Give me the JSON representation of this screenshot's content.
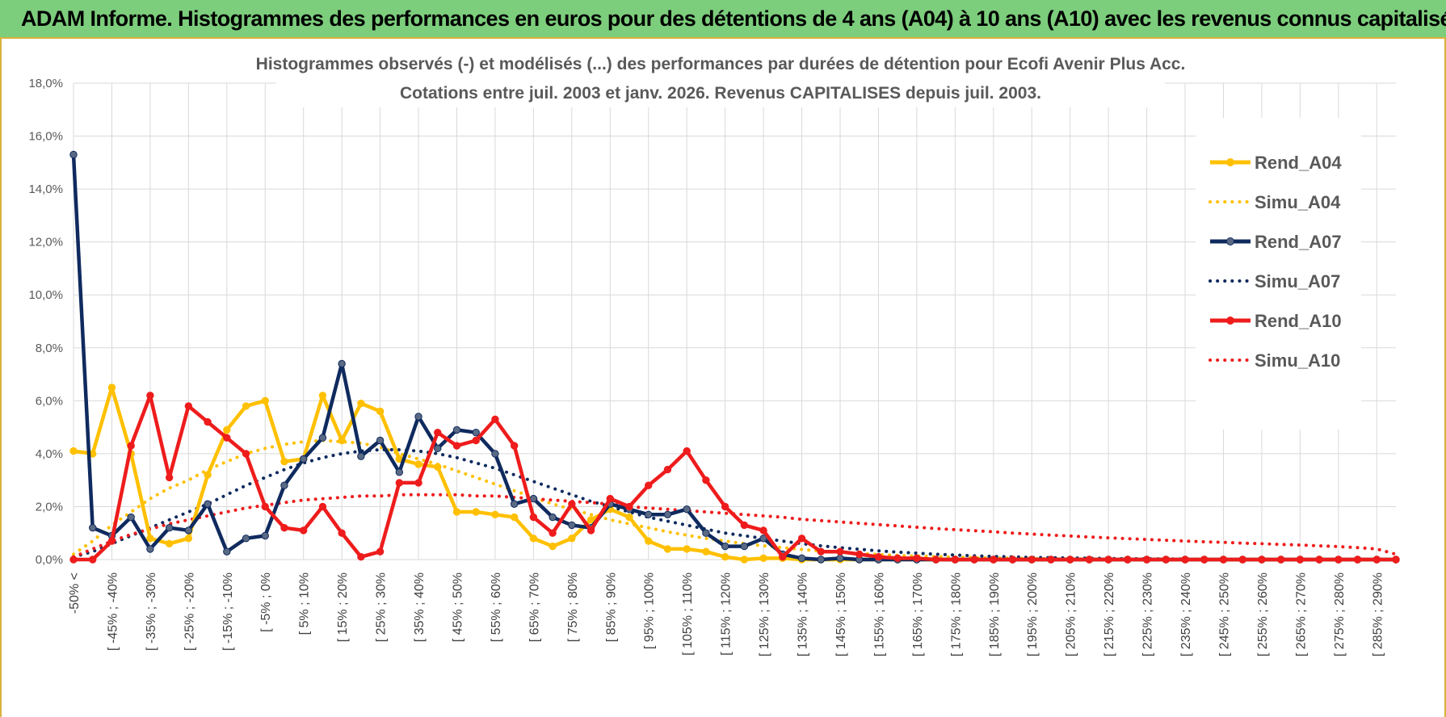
{
  "header": {
    "title": "ADAM Informe. Histogrammes des performances en euros pour des détentions de 4 ans (A04) à 10 ans (A10) avec les revenus connus capitalisés"
  },
  "chart_data": {
    "type": "line",
    "title": "Histogrammes observés (-) et modélisés (...) des performances par durées de détention pour Ecofi Avenir Plus Acc.",
    "subtitle": "Cotations entre juil. 2003 et janv. 2026. Revenus CAPITALISES depuis juil. 2003.",
    "ylim": [
      0,
      18
    ],
    "yticks": [
      "0,0%",
      "2,0%",
      "4,0%",
      "6,0%",
      "8,0%",
      "10,0%",
      "12,0%",
      "14,0%",
      "16,0%",
      "18,0%"
    ],
    "grid": true,
    "legend_position": "right",
    "tick_labels": [
      "-50% <",
      "[ -45% ; -40%",
      "[ -35% ; -30%",
      "[ -25% ; -20%",
      "[ -15% ; -10%",
      "[ -5% ; 0%",
      "[ 5% ; 10%",
      "[ 15% ; 20%",
      "[ 25% ; 30%",
      "[ 35% ; 40%",
      "[ 45% ; 50%",
      "[ 55% ; 60%",
      "[ 65% ; 70%",
      "[ 75% ; 80%",
      "[ 85% ; 90%",
      "[ 95% ; 100%",
      "[ 105% ; 110%",
      "[ 115% ; 120%",
      "[ 125% ; 130%",
      "[ 135% ; 140%",
      "[ 145% ; 150%",
      "[ 155% ; 160%",
      "[ 165% ; 170%",
      "[ 175% ; 180%",
      "[ 185% ; 190%",
      "[ 195% ; 200%",
      "[ 205% ; 210%",
      "[ 215% ; 220%",
      "[ 225% ; 230%",
      "[ 235% ; 240%",
      "[ 245% ; 250%",
      "[ 255% ; 260%",
      "[ 265% ; 270%",
      "[ 275% ; 280%",
      "[ 285% ; 290%"
    ],
    "series": [
      {
        "name": "Rend_A04",
        "color": "#ffc000",
        "style": "solid",
        "markers": true,
        "values": [
          4.1,
          4.0,
          6.5,
          4.0,
          0.8,
          0.6,
          0.8,
          3.2,
          4.9,
          5.8,
          6.0,
          3.7,
          3.8,
          6.2,
          4.5,
          5.9,
          5.6,
          3.8,
          3.6,
          3.5,
          1.8,
          1.8,
          1.7,
          1.6,
          0.8,
          0.5,
          0.8,
          1.5,
          1.9,
          1.6,
          0.7,
          0.4,
          0.4,
          0.3,
          0.1,
          0.0,
          0.05,
          0.05,
          0.0,
          0.0,
          0.0,
          0.0,
          0.0,
          0.0,
          0.0,
          0.0,
          0.0,
          0.0,
          0.0,
          0.0,
          0.0,
          0.0,
          0.0,
          0.0,
          0.0,
          0.0,
          0.0,
          0.0,
          0.0,
          0.0,
          0.0,
          0.0,
          0.0,
          0.0,
          0.0,
          0.0,
          0.0,
          0.0,
          0.0,
          0.0
        ]
      },
      {
        "name": "Simu_A04",
        "color": "#ffc000",
        "style": "dotted",
        "markers": false,
        "values": [
          0.2,
          0.7,
          1.3,
          1.8,
          2.3,
          2.7,
          3.0,
          3.4,
          3.7,
          4.0,
          4.2,
          4.35,
          4.45,
          4.5,
          4.45,
          4.4,
          4.25,
          4.0,
          3.8,
          3.6,
          3.35,
          3.1,
          2.85,
          2.6,
          2.35,
          2.1,
          1.9,
          1.7,
          1.5,
          1.35,
          1.2,
          1.05,
          0.92,
          0.8,
          0.7,
          0.6,
          0.52,
          0.45,
          0.38,
          0.32,
          0.27,
          0.23,
          0.19,
          0.16,
          0.13,
          0.11,
          0.09,
          0.07,
          0.06,
          0.05,
          0.04,
          0.03,
          0.02,
          0.02,
          0.01,
          0.01,
          0.01,
          0.01,
          0.0,
          0.0,
          0.0,
          0.0,
          0.0,
          0.0,
          0.0,
          0.0,
          0.0,
          0.0,
          0.0,
          0.0
        ]
      },
      {
        "name": "Rend_A07",
        "color": "#0f2a5e",
        "style": "solid",
        "markers": true,
        "values": [
          15.3,
          1.2,
          0.9,
          1.6,
          0.4,
          1.2,
          1.1,
          2.1,
          0.3,
          0.8,
          0.9,
          2.8,
          3.8,
          4.6,
          7.4,
          3.9,
          4.5,
          3.3,
          5.4,
          4.2,
          4.9,
          4.8,
          4.0,
          2.1,
          2.3,
          1.6,
          1.3,
          1.2,
          2.1,
          1.9,
          1.7,
          1.7,
          1.9,
          1.0,
          0.5,
          0.5,
          0.8,
          0.2,
          0.05,
          0.0,
          0.05,
          0.0,
          0.0,
          0.0,
          0.0,
          0.0,
          0.0,
          0.0,
          0.0,
          0.0,
          0.0,
          0.0,
          0.0,
          0.0,
          0.0,
          0.0,
          0.0,
          0.0,
          0.0,
          0.0,
          0.0,
          0.0,
          0.0,
          0.0,
          0.0,
          0.0,
          0.0,
          0.0,
          0.0,
          0.0
        ]
      },
      {
        "name": "Simu_A07",
        "color": "#0f2a5e",
        "style": "dotted",
        "markers": false,
        "values": [
          0.1,
          0.3,
          0.6,
          0.9,
          1.2,
          1.5,
          1.8,
          2.1,
          2.45,
          2.8,
          3.1,
          3.4,
          3.65,
          3.85,
          4.0,
          4.1,
          4.15,
          4.15,
          4.1,
          4.0,
          3.85,
          3.65,
          3.45,
          3.2,
          2.95,
          2.7,
          2.45,
          2.2,
          2.0,
          1.8,
          1.6,
          1.45,
          1.3,
          1.15,
          1.0,
          0.9,
          0.8,
          0.7,
          0.6,
          0.52,
          0.45,
          0.39,
          0.33,
          0.28,
          0.24,
          0.2,
          0.17,
          0.14,
          0.12,
          0.1,
          0.08,
          0.07,
          0.06,
          0.05,
          0.04,
          0.03,
          0.03,
          0.02,
          0.02,
          0.01,
          0.01,
          0.01,
          0.01,
          0.0,
          0.0,
          0.0,
          0.0,
          0.0,
          0.0,
          0.0
        ]
      },
      {
        "name": "Rend_A10",
        "color": "#ee1c1c",
        "style": "solid",
        "markers": true,
        "values": [
          0.0,
          0.0,
          0.7,
          4.3,
          6.2,
          3.1,
          5.8,
          5.2,
          4.6,
          4.0,
          2.0,
          1.2,
          1.1,
          2.0,
          1.0,
          0.1,
          0.3,
          2.9,
          2.9,
          4.8,
          4.3,
          4.5,
          5.3,
          4.3,
          1.6,
          1.0,
          2.1,
          1.1,
          2.3,
          2.0,
          2.8,
          3.4,
          4.1,
          3.0,
          2.0,
          1.3,
          1.1,
          0.1,
          0.8,
          0.3,
          0.3,
          0.2,
          0.1,
          0.05,
          0.05,
          0.0,
          0.0,
          0.0,
          0.0,
          0.0,
          0.0,
          0.0,
          0.0,
          0.0,
          0.0,
          0.0,
          0.0,
          0.0,
          0.0,
          0.0,
          0.0,
          0.0,
          0.0,
          0.0,
          0.0,
          0.0,
          0.0,
          0.0,
          0.0,
          0.0
        ]
      },
      {
        "name": "Simu_A10",
        "color": "#ee1c1c",
        "style": "dotted",
        "markers": false,
        "values": [
          0.1,
          0.4,
          0.7,
          0.95,
          1.15,
          1.35,
          1.5,
          1.65,
          1.8,
          1.95,
          2.05,
          2.15,
          2.25,
          2.3,
          2.35,
          2.4,
          2.4,
          2.45,
          2.45,
          2.45,
          2.45,
          2.4,
          2.4,
          2.35,
          2.3,
          2.25,
          2.2,
          2.15,
          2.1,
          2.0,
          1.95,
          1.9,
          1.85,
          1.8,
          1.75,
          1.7,
          1.65,
          1.6,
          1.52,
          1.47,
          1.42,
          1.37,
          1.32,
          1.27,
          1.22,
          1.17,
          1.13,
          1.09,
          1.05,
          1.0,
          0.96,
          0.92,
          0.89,
          0.85,
          0.82,
          0.79,
          0.76,
          0.73,
          0.7,
          0.67,
          0.65,
          0.62,
          0.6,
          0.57,
          0.55,
          0.52,
          0.49,
          0.45,
          0.4,
          0.2
        ]
      }
    ]
  }
}
